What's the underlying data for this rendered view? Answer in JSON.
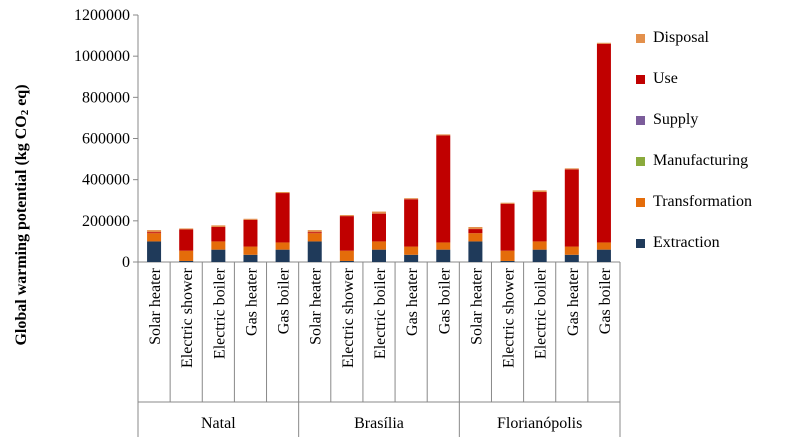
{
  "chart_data": {
    "type": "bar",
    "stacked": true,
    "ylabel": "Global warming potential (kg CO",
    "ylabel_sub": "2",
    "ylabel_suffix": " eq)",
    "ylim": [
      0,
      1200000
    ],
    "yticks": [
      "0",
      "200000",
      "400000",
      "600000",
      "800000",
      "1000000",
      "1200000"
    ],
    "grid": false,
    "legend_position": "right",
    "groups": [
      "Natal",
      "Brasília",
      "Florianópolis"
    ],
    "categories": [
      "Solar heater",
      "Electric shower",
      "Electric boiler",
      "Gas heater",
      "Gas boiler",
      "Solar heater",
      "Electric shower",
      "Electric boiler",
      "Gas heater",
      "Gas boiler",
      "Solar heater",
      "Electric shower",
      "Electric boiler",
      "Gas heater",
      "Gas boiler"
    ],
    "series": [
      {
        "name": "Extraction",
        "color": "#1f3a5a",
        "values": [
          100000,
          5000,
          60000,
          35000,
          60000,
          100000,
          5000,
          60000,
          35000,
          60000,
          100000,
          5000,
          60000,
          35000,
          60000
        ]
      },
      {
        "name": "Transformation",
        "color": "#e46c0a",
        "values": [
          40000,
          50000,
          40000,
          40000,
          35000,
          40000,
          50000,
          40000,
          40000,
          35000,
          40000,
          50000,
          40000,
          40000,
          35000
        ]
      },
      {
        "name": "Manufacturing",
        "color": "#8aaa3c",
        "values": [
          0,
          0,
          0,
          0,
          0,
          0,
          0,
          0,
          0,
          0,
          0,
          0,
          0,
          0,
          0
        ]
      },
      {
        "name": "Supply",
        "color": "#7b5c9a",
        "values": [
          0,
          0,
          0,
          0,
          0,
          0,
          0,
          0,
          0,
          0,
          0,
          0,
          0,
          0,
          0
        ]
      },
      {
        "name": "Use",
        "color": "#c00000",
        "values": [
          5000,
          103000,
          70000,
          130000,
          240000,
          5000,
          168000,
          135000,
          230000,
          520000,
          20000,
          228000,
          240000,
          375000,
          965000
        ]
      },
      {
        "name": "Disposal",
        "color": "#e3904c",
        "values": [
          10000,
          5000,
          8000,
          5000,
          5000,
          10000,
          5000,
          10000,
          5000,
          5000,
          10000,
          5000,
          8000,
          5000,
          5000
        ]
      }
    ]
  }
}
